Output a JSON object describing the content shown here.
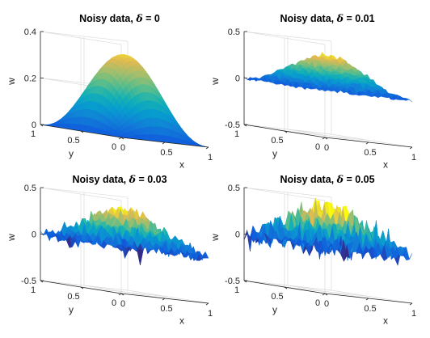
{
  "chart_data": [
    {
      "type": "surface",
      "title": "Noisy data, δ = 0",
      "title_prefix": "Noisy data, ",
      "title_symbol": "δ",
      "title_suffix": " = 0",
      "delta": 0,
      "xlabel": "x",
      "ylabel": "y",
      "zlabel": "w",
      "xlim": [
        0,
        1
      ],
      "ylim": [
        0,
        1
      ],
      "zlim": [
        0,
        0.4
      ],
      "xticks": [
        "0",
        "0.5",
        "1"
      ],
      "yticks": [
        "0",
        "0.5",
        "1"
      ],
      "zticks": [
        "0",
        "0.2",
        "0.4"
      ],
      "zticks_values": [
        0,
        0.2,
        0.4
      ],
      "peak": 0.35,
      "grid": true,
      "colormap": "parula"
    },
    {
      "type": "surface",
      "title": "Noisy data, δ = 0.01",
      "title_prefix": "Noisy data, ",
      "title_symbol": "δ",
      "title_suffix": " = 0.01",
      "delta": 0.01,
      "xlabel": "x",
      "ylabel": "y",
      "zlabel": "w",
      "xlim": [
        0,
        1
      ],
      "ylim": [
        0,
        1
      ],
      "zlim": [
        -0.5,
        0.5
      ],
      "xticks": [
        "0",
        "0.5",
        "1"
      ],
      "yticks": [
        "0",
        "0.5",
        "1"
      ],
      "zticks": [
        "-0.5",
        "0",
        "0.5"
      ],
      "zticks_values": [
        -0.5,
        0,
        0.5
      ],
      "peak": 0.35,
      "grid": true,
      "colormap": "parula"
    },
    {
      "type": "surface",
      "title": "Noisy data, δ = 0.03",
      "title_prefix": "Noisy data, ",
      "title_symbol": "δ",
      "title_suffix": " = 0.03",
      "delta": 0.03,
      "xlabel": "x",
      "ylabel": "y",
      "zlabel": "w",
      "xlim": [
        0,
        1
      ],
      "ylim": [
        0,
        1
      ],
      "zlim": [
        -0.5,
        0.5
      ],
      "xticks": [
        "0",
        "0.5",
        "1"
      ],
      "yticks": [
        "0",
        "0.5",
        "1"
      ],
      "zticks": [
        "-0.5",
        "0",
        "0.5"
      ],
      "zticks_values": [
        -0.5,
        0,
        0.5
      ],
      "peak": 0.35,
      "grid": true,
      "colormap": "parula"
    },
    {
      "type": "surface",
      "title": "Noisy data, δ = 0.05",
      "title_prefix": "Noisy data, ",
      "title_symbol": "δ",
      "title_suffix": " = 0.05",
      "delta": 0.05,
      "xlabel": "x",
      "ylabel": "y",
      "zlabel": "w",
      "xlim": [
        0,
        1
      ],
      "ylim": [
        0,
        1
      ],
      "zlim": [
        -0.5,
        0.5
      ],
      "xticks": [
        "0",
        "0.5",
        "1"
      ],
      "yticks": [
        "0",
        "0.5",
        "1"
      ],
      "zticks": [
        "-0.5",
        "0",
        "0.5"
      ],
      "zticks_values": [
        -0.5,
        0,
        0.5
      ],
      "peak": 0.35,
      "grid": true,
      "colormap": "parula"
    }
  ]
}
